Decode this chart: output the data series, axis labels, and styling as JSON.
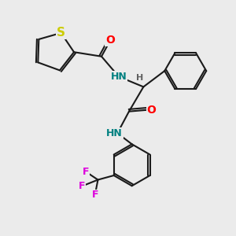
{
  "background_color": "#ebebeb",
  "bond_color": "#1a1a1a",
  "atom_colors": {
    "S": "#cccc00",
    "O": "#ff0000",
    "N": "#008080",
    "F": "#dd00dd",
    "H": "#606060",
    "C": "#1a1a1a"
  },
  "bond_width": 1.5,
  "dbo": 0.065,
  "font_size": 10
}
